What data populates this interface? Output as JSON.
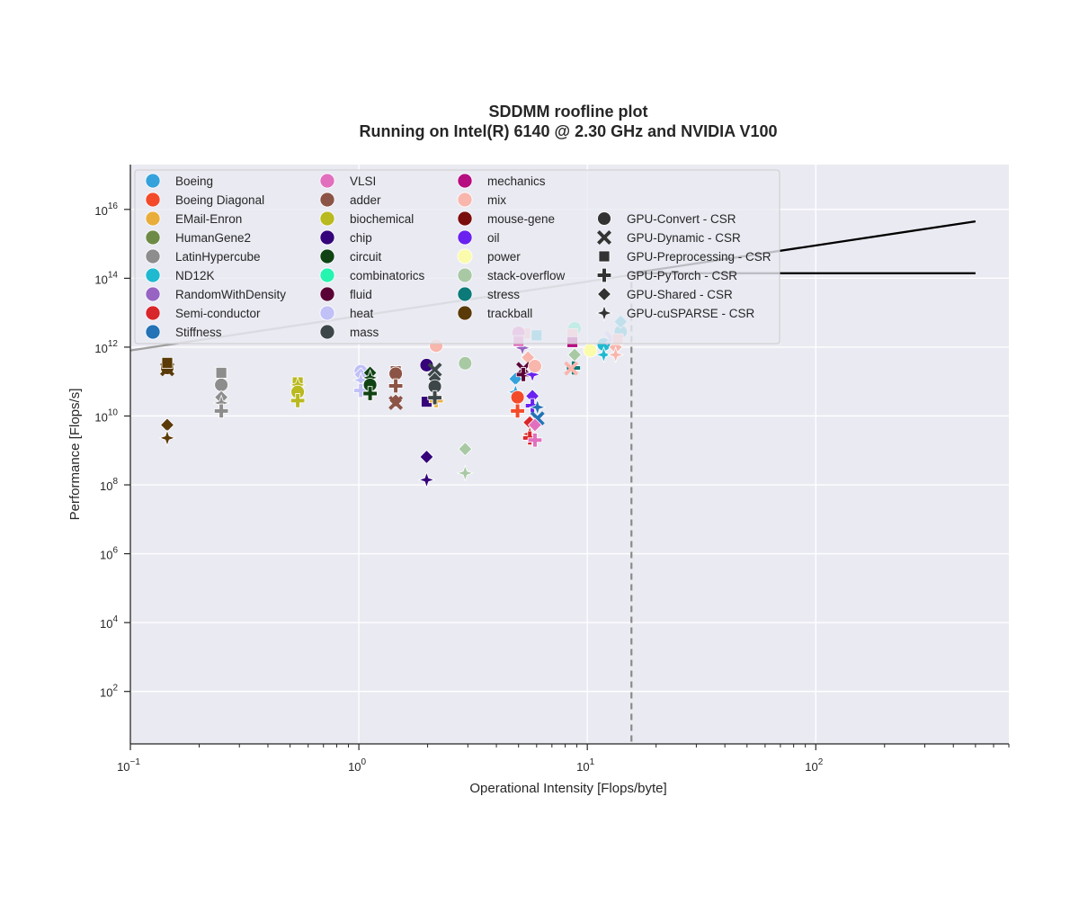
{
  "chart_data": {
    "type": "scatter",
    "title": "SDDMM roofline plot",
    "subtitle": "Running on Intel(R) 6140 @ 2.30 GHz and NVIDIA V100",
    "xlabel": "Operational Intensity [Flops/byte]",
    "ylabel": "Performance [Flops/s]",
    "x_scale": "log",
    "y_scale": "log",
    "xlim": [
      0.1,
      700
    ],
    "ylim": [
      3,
      200000000000000000
    ],
    "x_ticks": [
      {
        "base": "10",
        "exp": "−1",
        "value": 0.1
      },
      {
        "base": "10",
        "exp": "0",
        "value": 1
      },
      {
        "base": "10",
        "exp": "1",
        "value": 10
      },
      {
        "base": "10",
        "exp": "2",
        "value": 100
      }
    ],
    "y_ticks": [
      {
        "base": "10",
        "exp": "2",
        "value": 100
      },
      {
        "base": "10",
        "exp": "4",
        "value": 10000
      },
      {
        "base": "10",
        "exp": "6",
        "value": 1000000
      },
      {
        "base": "10",
        "exp": "8",
        "value": 100000000
      },
      {
        "base": "10",
        "exp": "10",
        "value": 10000000000
      },
      {
        "base": "10",
        "exp": "12",
        "value": 1000000000000
      },
      {
        "base": "10",
        "exp": "14",
        "value": 100000000000000
      },
      {
        "base": "10",
        "exp": "16",
        "value": 10000000000000000
      }
    ],
    "grid": true,
    "legend_position": "top-left",
    "background_color": "#eaeaf2",
    "roofline": {
      "cpu_line": [
        [
          0.1,
          800000000000
        ],
        [
          15.6,
          125000000000000
        ]
      ],
      "gpu_memory_line": [
        [
          15.6,
          140000000000000
        ],
        [
          500,
          4500000000000000
        ]
      ],
      "gpu_peak_line": [
        [
          15.6,
          140000000000000
        ],
        [
          500,
          140000000000000
        ]
      ],
      "ridge_x": 15.6
    },
    "datasets": [
      {
        "name": "Boeing",
        "color": "#36a2dc"
      },
      {
        "name": "Boeing Diagonal",
        "color": "#f34b2a"
      },
      {
        "name": "EMail-Enron",
        "color": "#e9ad3c"
      },
      {
        "name": "HumanGene2",
        "color": "#6d8b46"
      },
      {
        "name": "LatinHypercube",
        "color": "#8d8d8d"
      },
      {
        "name": "ND12K",
        "color": "#1fb9d0"
      },
      {
        "name": "RandomWithDensity",
        "color": "#9764c4"
      },
      {
        "name": "Semi-conductor",
        "color": "#d9262b"
      },
      {
        "name": "Stiffness",
        "color": "#2373b6"
      },
      {
        "name": "VLSI",
        "color": "#e26fbe"
      },
      {
        "name": "adder",
        "color": "#8c5446"
      },
      {
        "name": "biochemical",
        "color": "#b9b920"
      },
      {
        "name": "chip",
        "color": "#35037a"
      },
      {
        "name": "circuit",
        "color": "#0f4313"
      },
      {
        "name": "combinatorics",
        "color": "#26f4b1"
      },
      {
        "name": "fluid",
        "color": "#5a0236"
      },
      {
        "name": "heat",
        "color": "#c1c0f7"
      },
      {
        "name": "mass",
        "color": "#3d4749"
      },
      {
        "name": "mechanics",
        "color": "#b60d81"
      },
      {
        "name": "mix",
        "color": "#f8b6ad"
      },
      {
        "name": "mouse-gene",
        "color": "#7a0e0d"
      },
      {
        "name": "oil",
        "color": "#6a22f0"
      },
      {
        "name": "power",
        "color": "#fafbab"
      },
      {
        "name": "stack-overflow",
        "color": "#a8c9a4"
      },
      {
        "name": "stress",
        "color": "#0b7a79"
      },
      {
        "name": "trackball",
        "color": "#5a3a06"
      }
    ],
    "methods": [
      {
        "name": "GPU-Convert - CSR",
        "marker": "circle"
      },
      {
        "name": "GPU-Dynamic - CSR",
        "marker": "x"
      },
      {
        "name": "GPU-Preprocessing - CSR",
        "marker": "square"
      },
      {
        "name": "GPU-PyTorch - CSR",
        "marker": "plus"
      },
      {
        "name": "GPU-Shared - CSR",
        "marker": "diamond"
      },
      {
        "name": "GPU-cuSPARSE - CSR",
        "marker": "star"
      }
    ],
    "points": [
      {
        "dataset": "trackball",
        "method": "GPU-Convert - CSR",
        "x": 0.145,
        "y": 250000000000
      },
      {
        "dataset": "trackball",
        "method": "GPU-Dynamic - CSR",
        "x": 0.145,
        "y": 230000000000
      },
      {
        "dataset": "trackball",
        "method": "GPU-Preprocessing - CSR",
        "x": 0.145,
        "y": 350000000000
      },
      {
        "dataset": "trackball",
        "method": "GPU-Shared - CSR",
        "x": 0.145,
        "y": 5500000000
      },
      {
        "dataset": "trackball",
        "method": "GPU-cuSPARSE - CSR",
        "x": 0.145,
        "y": 2300000000
      },
      {
        "dataset": "LatinHypercube",
        "method": "GPU-Convert - CSR",
        "x": 0.25,
        "y": 80000000000
      },
      {
        "dataset": "LatinHypercube",
        "method": "GPU-Preprocessing - CSR",
        "x": 0.25,
        "y": 180000000000
      },
      {
        "dataset": "LatinHypercube",
        "method": "GPU-Shared - CSR",
        "x": 0.25,
        "y": 35000000000
      },
      {
        "dataset": "LatinHypercube",
        "method": "GPU-cuSPARSE - CSR",
        "x": 0.25,
        "y": 24000000000
      },
      {
        "dataset": "LatinHypercube",
        "method": "GPU-PyTorch - CSR",
        "x": 0.25,
        "y": 14000000000
      },
      {
        "dataset": "biochemical",
        "method": "GPU-Preprocessing - CSR",
        "x": 0.54,
        "y": 95000000000
      },
      {
        "dataset": "biochemical",
        "method": "GPU-cuSPARSE - CSR",
        "x": 0.54,
        "y": 80000000000
      },
      {
        "dataset": "biochemical",
        "method": "GPU-Convert - CSR",
        "x": 0.54,
        "y": 50000000000
      },
      {
        "dataset": "biochemical",
        "method": "GPU-PyTorch - CSR",
        "x": 0.54,
        "y": 28000000000
      },
      {
        "dataset": "heat",
        "method": "GPU-Convert - CSR",
        "x": 1.02,
        "y": 200000000000
      },
      {
        "dataset": "heat",
        "method": "GPU-Shared - CSR",
        "x": 1.02,
        "y": 160000000000
      },
      {
        "dataset": "heat",
        "method": "GPU-cuSPARSE - CSR",
        "x": 1.02,
        "y": 110000000000
      },
      {
        "dataset": "heat",
        "method": "GPU-PyTorch - CSR",
        "x": 1.02,
        "y": 55000000000
      },
      {
        "dataset": "circuit",
        "method": "GPU-Shared - CSR",
        "x": 1.12,
        "y": 180000000000
      },
      {
        "dataset": "circuit",
        "method": "GPU-cuSPARSE - CSR",
        "x": 1.12,
        "y": 130000000000
      },
      {
        "dataset": "circuit",
        "method": "GPU-Convert - CSR",
        "x": 1.12,
        "y": 80000000000
      },
      {
        "dataset": "circuit",
        "method": "GPU-PyTorch - CSR",
        "x": 1.12,
        "y": 45000000000
      },
      {
        "dataset": "adder",
        "method": "GPU-Preprocessing - CSR",
        "x": 1.45,
        "y": 200000000000
      },
      {
        "dataset": "adder",
        "method": "GPU-Convert - CSR",
        "x": 1.45,
        "y": 170000000000
      },
      {
        "dataset": "adder",
        "method": "GPU-PyTorch - CSR",
        "x": 1.45,
        "y": 75000000000
      },
      {
        "dataset": "adder",
        "method": "GPU-Shared - CSR",
        "x": 1.45,
        "y": 28000000000
      },
      {
        "dataset": "adder",
        "method": "GPU-Dynamic - CSR",
        "x": 1.45,
        "y": 24000000000
      },
      {
        "dataset": "chip",
        "method": "GPU-Convert - CSR",
        "x": 1.98,
        "y": 300000000000
      },
      {
        "dataset": "chip",
        "method": "GPU-Preprocessing - CSR",
        "x": 1.98,
        "y": 26000000000
      },
      {
        "dataset": "chip",
        "method": "GPU-Shared - CSR",
        "x": 1.98,
        "y": 650000000
      },
      {
        "dataset": "chip",
        "method": "GPU-cuSPARSE - CSR",
        "x": 1.98,
        "y": 140000000
      },
      {
        "dataset": "EMail-Enron",
        "method": "GPU-PyTorch - CSR",
        "x": 2.18,
        "y": 28000000000
      },
      {
        "dataset": "mass",
        "method": "GPU-Dynamic - CSR",
        "x": 2.15,
        "y": 220000000000
      },
      {
        "dataset": "mass",
        "method": "GPU-Shared - CSR",
        "x": 2.15,
        "y": 120000000000
      },
      {
        "dataset": "mass",
        "method": "GPU-Convert - CSR",
        "x": 2.15,
        "y": 72000000000
      },
      {
        "dataset": "mass",
        "method": "GPU-PyTorch - CSR",
        "x": 2.15,
        "y": 34000000000
      },
      {
        "dataset": "mix",
        "method": "GPU-Convert - CSR",
        "x": 2.18,
        "y": 1100000000000
      },
      {
        "dataset": "stack-overflow",
        "method": "GPU-Convert - CSR",
        "x": 2.92,
        "y": 340000000000
      },
      {
        "dataset": "stack-overflow",
        "method": "GPU-Shared - CSR",
        "x": 2.92,
        "y": 1100000000
      },
      {
        "dataset": "stack-overflow",
        "method": "GPU-cuSPARSE - CSR",
        "x": 2.92,
        "y": 220000000
      },
      {
        "dataset": "Boeing",
        "method": "GPU-Shared - CSR",
        "x": 4.85,
        "y": 120000000000
      },
      {
        "dataset": "Boeing",
        "method": "GPU-cuSPARSE - CSR",
        "x": 4.85,
        "y": 50000000000
      },
      {
        "dataset": "Boeing Diagonal",
        "method": "GPU-Convert - CSR",
        "x": 4.95,
        "y": 35000000000
      },
      {
        "dataset": "Boeing Diagonal",
        "method": "GPU-PyTorch - CSR",
        "x": 4.95,
        "y": 14000000000
      },
      {
        "dataset": "mix",
        "method": "GPU-Preprocessing - CSR",
        "x": 5.35,
        "y": 2500000000000
      },
      {
        "dataset": "mix",
        "method": "GPU-Shared - CSR",
        "x": 5.5,
        "y": 500000000000
      },
      {
        "dataset": "RandomWithDensity",
        "method": "GPU-cuSPARSE - CSR",
        "x": 5.2,
        "y": 950000000000
      },
      {
        "dataset": "fluid",
        "method": "GPU-Dynamic - CSR",
        "x": 5.25,
        "y": 230000000000
      },
      {
        "dataset": "fluid",
        "method": "GPU-PyTorch - CSR",
        "x": 5.25,
        "y": 160000000000
      },
      {
        "dataset": "VLSI",
        "method": "GPU-Convert - CSR",
        "x": 5.0,
        "y": 2600000000000
      },
      {
        "dataset": "VLSI",
        "method": "GPU-Preprocessing - CSR",
        "x": 5.0,
        "y": 1500000000000
      },
      {
        "dataset": "Semi-conductor",
        "method": "GPU-Shared - CSR",
        "x": 5.6,
        "y": 6500000000
      },
      {
        "dataset": "Semi-conductor",
        "method": "GPU-cuSPARSE - CSR",
        "x": 5.6,
        "y": 3000000000
      },
      {
        "dataset": "Semi-conductor",
        "method": "GPU-PyTorch - CSR",
        "x": 5.6,
        "y": 2300000000
      },
      {
        "dataset": "oil",
        "method": "GPU-Shared - CSR",
        "x": 5.75,
        "y": 38000000000
      },
      {
        "dataset": "oil",
        "method": "GPU-PyTorch - CSR",
        "x": 5.75,
        "y": 20000000000
      },
      {
        "dataset": "oil",
        "method": "GPU-cuSPARSE - CSR",
        "x": 5.75,
        "y": 160000000000
      },
      {
        "dataset": "Stiffness",
        "method": "GPU-cuSPARSE - CSR",
        "x": 6.05,
        "y": 18000000000
      },
      {
        "dataset": "Stiffness",
        "method": "GPU-Dynamic - CSR",
        "x": 6.05,
        "y": 8500000000
      },
      {
        "dataset": "VLSI",
        "method": "GPU-Shared - CSR",
        "x": 5.9,
        "y": 5500000000
      },
      {
        "dataset": "VLSI",
        "method": "GPU-PyTorch - CSR",
        "x": 5.9,
        "y": 2000000000
      },
      {
        "dataset": "ND12K",
        "method": "GPU-Preprocessing - CSR",
        "x": 6.0,
        "y": 2200000000000
      },
      {
        "dataset": "mix",
        "method": "GPU-Convert - CSR",
        "x": 5.9,
        "y": 280000000000
      },
      {
        "dataset": "stress",
        "method": "GPU-PyTorch - CSR",
        "x": 8.7,
        "y": 250000000000
      },
      {
        "dataset": "combinatorics",
        "method": "GPU-Convert - CSR",
        "x": 8.8,
        "y": 3500000000000
      },
      {
        "dataset": "mix",
        "method": "GPU-Preprocessing - CSR",
        "x": 8.6,
        "y": 2400000000000
      },
      {
        "dataset": "mechanics",
        "method": "GPU-Preprocessing - CSR",
        "x": 8.6,
        "y": 1400000000000
      },
      {
        "dataset": "stack-overflow",
        "method": "GPU-Shared - CSR",
        "x": 8.8,
        "y": 600000000000
      },
      {
        "dataset": "mix",
        "method": "GPU-Dynamic - CSR",
        "x": 8.5,
        "y": 240000000000
      },
      {
        "dataset": "power",
        "method": "GPU-Convert - CSR",
        "x": 10.3,
        "y": 800000000000
      },
      {
        "dataset": "ND12K",
        "method": "GPU-Convert - CSR",
        "x": 11.8,
        "y": 1200000000000
      },
      {
        "dataset": "ND12K",
        "method": "GPU-cuSPARSE - CSR",
        "x": 11.8,
        "y": 600000000000
      },
      {
        "dataset": "heat",
        "method": "GPU-Dynamic - CSR",
        "x": 12.8,
        "y": 1800000000000
      },
      {
        "dataset": "mix",
        "method": "GPU-Shared - CSR",
        "x": 13.3,
        "y": 1000000000000
      },
      {
        "dataset": "mix",
        "method": "GPU-cuSPARSE - CSR",
        "x": 13.3,
        "y": 600000000000
      },
      {
        "dataset": "ND12K",
        "method": "GPU-Convert - CSR",
        "x": 14.0,
        "y": 2800000000000
      },
      {
        "dataset": "ND12K",
        "method": "GPU-Shared - CSR",
        "x": 14.0,
        "y": 5500000000000
      },
      {
        "dataset": "mix",
        "method": "GPU-Preprocessing - CSR",
        "x": 13.6,
        "y": 1700000000000
      }
    ]
  }
}
